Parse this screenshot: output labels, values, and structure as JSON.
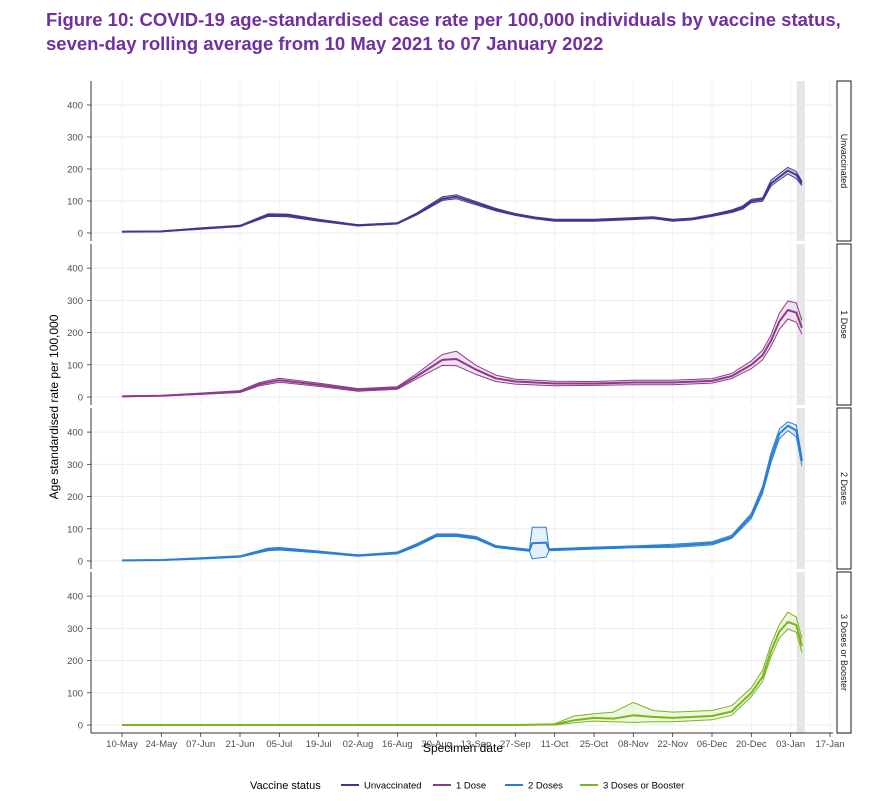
{
  "title": "Figure 10: COVID-19 age-standardised case rate per 100,000 individuals by vaccine status, seven-day rolling average from 10 May 2021 to 07 January 2022",
  "chart_data": {
    "type": "line",
    "xlabel": "Specimen date",
    "ylabel": "Age standardised rate per 100,000",
    "x_start": "2021-05-10",
    "x_end": "2022-01-17",
    "x_ticks": [
      "10-May",
      "24-May",
      "07-Jun",
      "21-Jun",
      "05-Jul",
      "19-Jul",
      "02-Aug",
      "16-Aug",
      "30-Aug",
      "13-Sep",
      "27-Sep",
      "11-Oct",
      "25-Oct",
      "08-Nov",
      "22-Nov",
      "06-Dec",
      "20-Dec",
      "03-Jan",
      "17-Jan"
    ],
    "ylim": [
      0,
      450
    ],
    "y_ticks": [
      "0",
      "100",
      "200",
      "300",
      "400"
    ],
    "shaded_period": [
      "2022-01-03",
      "2022-01-07"
    ],
    "legend_title": "Vaccine status",
    "legend_position": "bottom",
    "series": [
      {
        "name": "Unvaccinated",
        "color": "#3f3a8f",
        "band_color": "#6b63b5",
        "dates": [
          "2021-05-10",
          "2021-05-24",
          "2021-06-07",
          "2021-06-21",
          "2021-07-01",
          "2021-07-08",
          "2021-07-19",
          "2021-08-02",
          "2021-08-16",
          "2021-08-23",
          "2021-09-01",
          "2021-09-06",
          "2021-09-13",
          "2021-09-20",
          "2021-09-27",
          "2021-10-04",
          "2021-10-11",
          "2021-10-25",
          "2021-11-08",
          "2021-11-15",
          "2021-11-22",
          "2021-11-29",
          "2021-12-06",
          "2021-12-13",
          "2021-12-17",
          "2021-12-20",
          "2021-12-24",
          "2021-12-27",
          "2021-12-30",
          "2022-01-02",
          "2022-01-05",
          "2022-01-07"
        ],
        "values": [
          4,
          5,
          14,
          22,
          56,
          55,
          40,
          24,
          30,
          60,
          107,
          113,
          93,
          73,
          58,
          47,
          40,
          40,
          45,
          48,
          40,
          44,
          55,
          68,
          80,
          100,
          105,
          155,
          175,
          195,
          182,
          155
        ],
        "lower": [
          3,
          4,
          12,
          20,
          52,
          51,
          37,
          22,
          28,
          57,
          102,
          107,
          88,
          69,
          55,
          44,
          37,
          37,
          42,
          45,
          37,
          41,
          52,
          64,
          75,
          95,
          99,
          147,
          166,
          185,
          170,
          148
        ],
        "upper": [
          5,
          6,
          16,
          24,
          60,
          59,
          43,
          26,
          32,
          63,
          113,
          119,
          98,
          77,
          61,
          50,
          43,
          43,
          48,
          51,
          43,
          47,
          58,
          72,
          85,
          105,
          110,
          165,
          185,
          205,
          192,
          162
        ]
      },
      {
        "name": "1 Dose",
        "color": "#8e3a8c",
        "band_color": "#b46bb3",
        "dates": [
          "2021-05-10",
          "2021-05-24",
          "2021-06-07",
          "2021-06-21",
          "2021-06-28",
          "2021-07-05",
          "2021-07-19",
          "2021-08-02",
          "2021-08-16",
          "2021-08-23",
          "2021-09-01",
          "2021-09-06",
          "2021-09-13",
          "2021-09-20",
          "2021-09-27",
          "2021-10-11",
          "2021-10-25",
          "2021-11-08",
          "2021-11-22",
          "2021-12-06",
          "2021-12-13",
          "2021-12-20",
          "2021-12-24",
          "2021-12-27",
          "2021-12-30",
          "2022-01-02",
          "2022-01-05",
          "2022-01-07"
        ],
        "values": [
          2,
          4,
          10,
          17,
          40,
          52,
          38,
          22,
          28,
          65,
          115,
          118,
          85,
          58,
          48,
          42,
          42,
          45,
          45,
          50,
          65,
          100,
          130,
          175,
          235,
          270,
          262,
          215
        ],
        "lower": [
          1,
          3,
          8,
          14,
          35,
          46,
          33,
          18,
          24,
          57,
          98,
          97,
          70,
          48,
          40,
          35,
          36,
          38,
          38,
          43,
          57,
          88,
          115,
          158,
          210,
          242,
          232,
          195
        ],
        "upper": [
          3,
          5,
          12,
          20,
          45,
          58,
          43,
          26,
          32,
          73,
          132,
          142,
          98,
          68,
          55,
          49,
          48,
          52,
          52,
          57,
          73,
          112,
          145,
          192,
          260,
          298,
          292,
          238
        ]
      },
      {
        "name": "2 Doses",
        "color": "#2a7fd4",
        "band_color": "#6aaae8",
        "dates": [
          "2021-05-10",
          "2021-05-24",
          "2021-06-07",
          "2021-06-21",
          "2021-07-01",
          "2021-07-05",
          "2021-07-19",
          "2021-08-02",
          "2021-08-16",
          "2021-08-23",
          "2021-08-30",
          "2021-09-06",
          "2021-09-13",
          "2021-09-20",
          "2021-09-27",
          "2021-10-02",
          "2021-10-03",
          "2021-10-08",
          "2021-10-09",
          "2021-10-25",
          "2021-11-08",
          "2021-11-22",
          "2021-12-06",
          "2021-12-13",
          "2021-12-20",
          "2021-12-24",
          "2021-12-27",
          "2021-12-30",
          "2022-01-02",
          "2022-01-05",
          "2022-01-07"
        ],
        "values": [
          2,
          3,
          8,
          14,
          36,
          38,
          28,
          17,
          25,
          50,
          80,
          80,
          72,
          45,
          38,
          33,
          55,
          57,
          35,
          40,
          44,
          47,
          55,
          75,
          140,
          220,
          320,
          395,
          420,
          405,
          310
        ],
        "lower": [
          1,
          2,
          6,
          12,
          32,
          34,
          25,
          15,
          22,
          46,
          76,
          76,
          68,
          42,
          35,
          30,
          7,
          12,
          32,
          37,
          41,
          42,
          50,
          70,
          132,
          210,
          305,
          380,
          405,
          385,
          295
        ],
        "upper": [
          3,
          4,
          10,
          16,
          40,
          42,
          31,
          19,
          28,
          54,
          84,
          84,
          76,
          48,
          41,
          36,
          105,
          105,
          38,
          43,
          47,
          52,
          60,
          80,
          148,
          232,
          335,
          410,
          432,
          422,
          322
        ]
      },
      {
        "name": "3 Doses or Booster",
        "color": "#7ab51d",
        "band_color": "#a7d153",
        "dates": [
          "2021-05-10",
          "2021-06-07",
          "2021-07-05",
          "2021-08-02",
          "2021-08-30",
          "2021-09-27",
          "2021-10-11",
          "2021-10-18",
          "2021-10-25",
          "2021-11-01",
          "2021-11-08",
          "2021-11-15",
          "2021-11-22",
          "2021-12-06",
          "2021-12-13",
          "2021-12-20",
          "2021-12-24",
          "2021-12-27",
          "2021-12-30",
          "2022-01-02",
          "2022-01-05",
          "2022-01-07"
        ],
        "values": [
          0,
          0,
          0,
          0,
          0,
          0,
          2,
          15,
          22,
          20,
          30,
          25,
          22,
          28,
          42,
          100,
          150,
          230,
          290,
          320,
          310,
          245
        ],
        "lower": [
          0,
          0,
          0,
          0,
          0,
          0,
          0,
          7,
          12,
          10,
          8,
          10,
          10,
          16,
          30,
          88,
          135,
          212,
          270,
          298,
          288,
          225
        ],
        "upper": [
          0,
          0,
          0,
          0,
          0,
          0,
          4,
          28,
          35,
          40,
          70,
          45,
          40,
          45,
          60,
          115,
          170,
          250,
          312,
          350,
          335,
          268
        ]
      }
    ]
  }
}
